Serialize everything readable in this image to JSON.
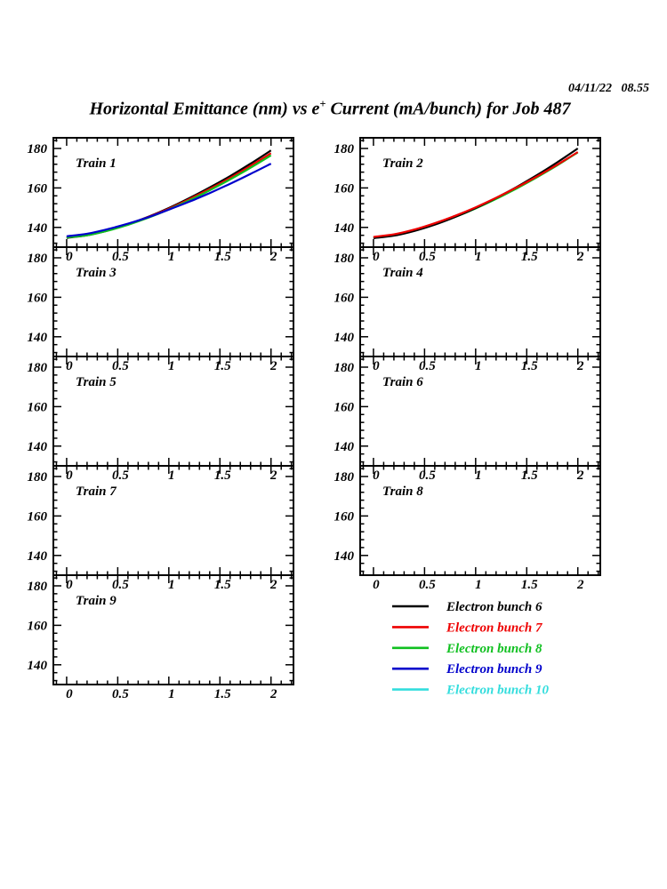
{
  "header": {
    "datetime": "04/11/22   08.55",
    "title_pre": "Horizontal Emittance (nm) vs e",
    "title_sup": "+",
    "title_post": " Current (mA/bunch) for Job 487"
  },
  "chart_data": {
    "type": "line",
    "title": "Horizontal Emittance (nm) vs e+ Current (mA/bunch) for Job 487",
    "xlabel": "e+ Current (mA/bunch)",
    "ylabel": "Horizontal Emittance (nm)",
    "grid": false,
    "xlim": [
      -0.13,
      2.22
    ],
    "ylim": [
      130,
      185.4
    ],
    "xticks": [
      0,
      0.5,
      1,
      1.5,
      2
    ],
    "xtick_labels": [
      "0",
      "0.5",
      "1",
      "1.5",
      "2"
    ],
    "yticks": [
      140,
      160,
      180
    ],
    "ytick_labels": [
      "140",
      "160",
      "180"
    ],
    "x_minor_step": 0.1,
    "y_minor_step": 4,
    "x": [
      0,
      0.2,
      0.4,
      0.6,
      0.8,
      1.0,
      1.2,
      1.4,
      1.6,
      1.8,
      2.0
    ],
    "panels": [
      {
        "title": "Train 1",
        "series": [
          {
            "name": "Electron bunch 6",
            "color": "#000000",
            "values": [
              134.7,
              136.0,
              138.4,
              141.6,
              145.4,
              149.8,
              154.8,
              160.2,
              166.0,
              172.3,
              179.0
            ]
          },
          {
            "name": "Electron bunch 7",
            "color": "#ee0000",
            "values": [
              135.0,
              136.2,
              138.5,
              141.6,
              145.3,
              149.5,
              154.3,
              159.5,
              165.1,
              171.2,
              177.6
            ]
          },
          {
            "name": "Electron bunch 8",
            "color": "#10c020",
            "values": [
              134.9,
              136.0,
              138.3,
              141.3,
              144.9,
              149.1,
              153.7,
              158.8,
              164.3,
              170.2,
              176.5
            ]
          },
          {
            "name": "Electron bunch 9",
            "color": "#0000cc",
            "values": [
              135.5,
              136.8,
              139.1,
              141.9,
              145.2,
              149.0,
              153.0,
              157.4,
              162.1,
              167.1,
              172.3
            ]
          }
        ]
      },
      {
        "title": "Train 2",
        "series": [
          {
            "name": "Electron bunch 8",
            "color": "#10c020",
            "values": [
              134.9,
              136.1,
              138.5,
              141.6,
              145.3,
              149.6,
              154.4,
              159.7,
              165.4,
              171.5,
              178.0
            ]
          },
          {
            "name": "Electron bunch 6",
            "color": "#000000",
            "values": [
              134.6,
              135.8,
              138.2,
              141.4,
              145.3,
              149.8,
              154.9,
              160.4,
              166.5,
              173.0,
              180.0
            ]
          },
          {
            "name": "Electron bunch 7",
            "color": "#ee0000",
            "values": [
              135.2,
              136.5,
              138.9,
              142.1,
              145.9,
              150.2,
              155.0,
              160.2,
              165.8,
              171.8,
              178.2
            ]
          }
        ]
      },
      {
        "title": "Train 3",
        "series": []
      },
      {
        "title": "Train 4",
        "series": []
      },
      {
        "title": "Train 5",
        "series": []
      },
      {
        "title": "Train 6",
        "series": []
      },
      {
        "title": "Train 7",
        "series": []
      },
      {
        "title": "Train 8",
        "series": []
      },
      {
        "title": "Train 9",
        "series": []
      }
    ],
    "legend": {
      "position": "bottom-right",
      "entries": [
        {
          "label": "Electron bunch 6",
          "color": "#000000"
        },
        {
          "label": "Electron bunch 7",
          "color": "#ee0000"
        },
        {
          "label": "Electron bunch 8",
          "color": "#10c020"
        },
        {
          "label": "Electron bunch 9",
          "color": "#0000cc"
        },
        {
          "label": "Electron bunch 10",
          "color": "#33dddd"
        }
      ]
    }
  }
}
